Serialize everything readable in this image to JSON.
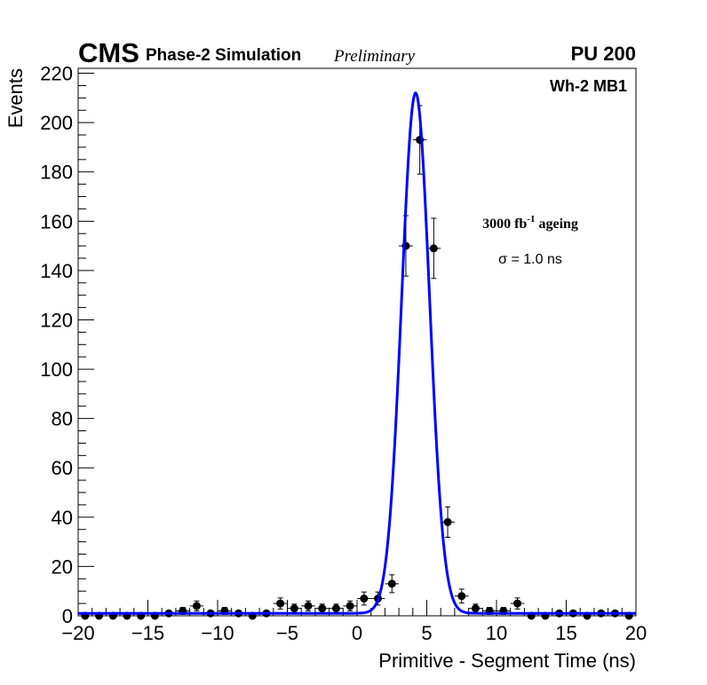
{
  "header": {
    "experiment": "CMS",
    "subtitle": "Phase-2 Simulation",
    "status": "Preliminary",
    "pileup": "PU 200"
  },
  "annotations": {
    "region": "Wh-2 MB1",
    "lumi_prefix": "3000 fb",
    "lumi_exp": "-1",
    "lumi_suffix": " ageing",
    "sigma": "σ = 1.0 ns"
  },
  "chart_data": {
    "type": "scatter",
    "title": "",
    "xlabel": "Primitive - Segment Time (ns)",
    "ylabel": "Events",
    "xlim": [
      -20,
      20
    ],
    "ylim": [
      0,
      222
    ],
    "x_ticks": [
      -20,
      -15,
      -10,
      -5,
      0,
      5,
      10,
      15,
      20
    ],
    "x_tick_labels": [
      "−20",
      "−15",
      "−10",
      "−5",
      "0",
      "5",
      "10",
      "15",
      "20"
    ],
    "y_ticks": [
      0,
      20,
      40,
      60,
      80,
      100,
      120,
      140,
      160,
      180,
      200,
      220
    ],
    "y_tick_labels": [
      "0",
      "20",
      "40",
      "60",
      "80",
      "100",
      "120",
      "140",
      "160",
      "180",
      "200",
      "220"
    ],
    "grid": false,
    "colors": {
      "fit": "#0000ff",
      "points": "#000000"
    },
    "series": [
      {
        "kind": "histogram-points",
        "bin_width": 1.0,
        "x": [
          -19.5,
          -18.5,
          -17.5,
          -16.5,
          -15.5,
          -14.5,
          -13.5,
          -12.5,
          -11.5,
          -10.5,
          -9.5,
          -8.5,
          -7.5,
          -6.5,
          -5.5,
          -4.5,
          -3.5,
          -2.5,
          -1.5,
          -0.5,
          0.5,
          1.5,
          2.5,
          3.5,
          4.5,
          5.5,
          6.5,
          7.5,
          8.5,
          9.5,
          10.5,
          11.5,
          12.5,
          13.5,
          14.5,
          15.5,
          16.5,
          17.5,
          18.5,
          19.5
        ],
        "y": [
          0,
          0,
          0,
          0,
          0,
          0,
          1,
          2,
          4,
          1,
          2,
          1,
          0,
          1,
          5,
          3,
          4,
          3,
          3,
          4,
          7,
          7,
          13,
          150,
          193,
          149,
          38,
          8,
          3,
          2,
          2,
          5,
          0,
          0,
          1,
          1,
          0,
          1,
          1,
          0
        ]
      },
      {
        "kind": "gaussian-fit",
        "mean": 4.2,
        "sigma": 1.0,
        "amplitude": 211,
        "baseline": 1
      }
    ]
  }
}
